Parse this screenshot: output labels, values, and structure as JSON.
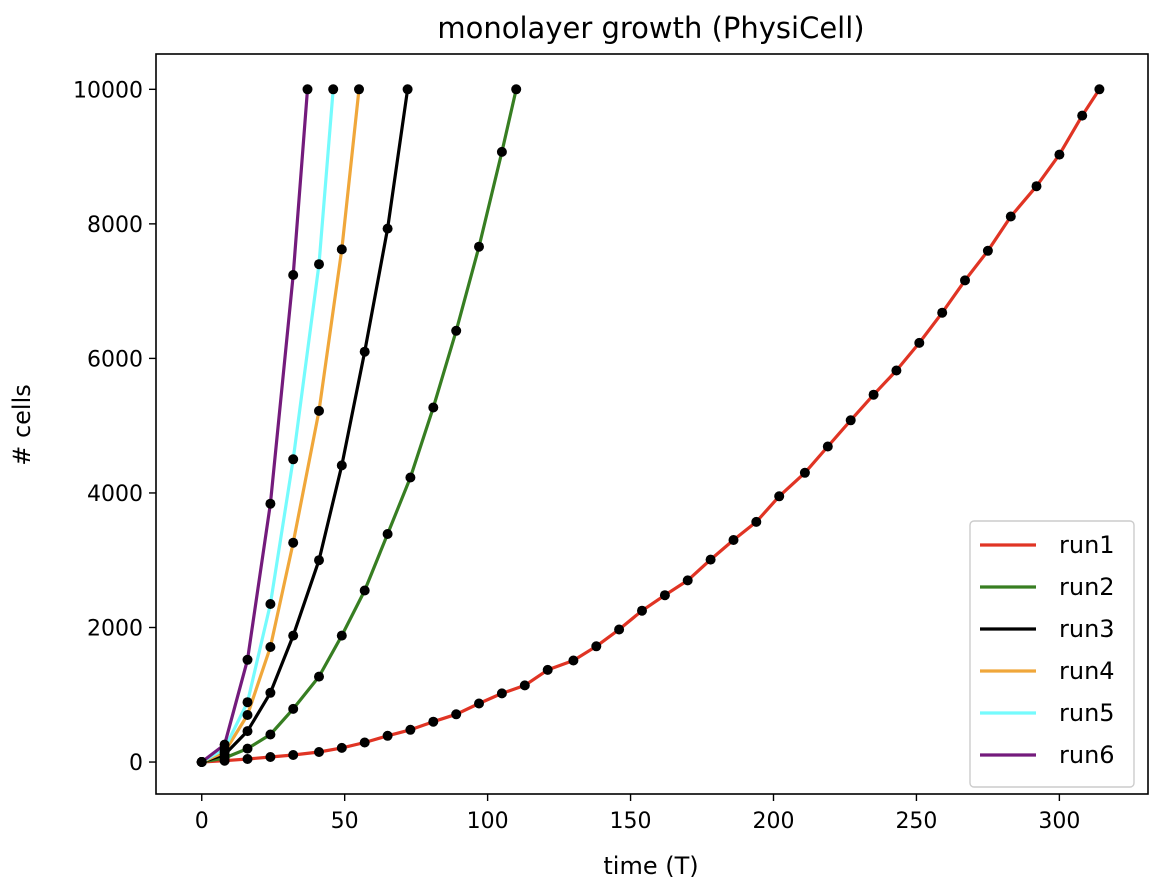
{
  "chart_data": {
    "type": "line",
    "title": "monolayer growth (PhysiCell)",
    "xlabel": "time (T)",
    "ylabel": "# cells",
    "xlim": [
      -16,
      331
    ],
    "ylim": [
      -475,
      10525
    ],
    "xticks": [
      0,
      50,
      100,
      150,
      200,
      250,
      300
    ],
    "yticks": [
      0,
      2000,
      4000,
      6000,
      8000,
      10000
    ],
    "grid": false,
    "legend": "lower-right",
    "marker_color": "#000000",
    "series": [
      {
        "name": "run1",
        "color": "#e03424",
        "x": [
          0,
          8,
          16,
          24,
          32,
          41,
          49,
          57,
          65,
          73,
          81,
          89,
          97,
          105,
          113,
          121,
          130,
          138,
          146,
          154,
          162,
          170,
          178,
          186,
          194,
          202,
          211,
          219,
          227,
          235,
          243,
          251,
          259,
          267,
          275,
          283,
          292,
          300,
          308,
          314
        ],
        "y": [
          0,
          20,
          45,
          75,
          105,
          150,
          210,
          290,
          390,
          480,
          600,
          710,
          870,
          1020,
          1140,
          1370,
          1510,
          1720,
          1970,
          2250,
          2480,
          2700,
          3010,
          3300,
          3570,
          3950,
          4300,
          4690,
          5080,
          5460,
          5820,
          6230,
          6680,
          7160,
          7600,
          8110,
          8560,
          9030,
          9610,
          10000
        ]
      },
      {
        "name": "run2",
        "color": "#377e22",
        "x": [
          0,
          8,
          16,
          24,
          32,
          41,
          49,
          57,
          65,
          73,
          81,
          89,
          97,
          105,
          110
        ],
        "y": [
          0,
          60,
          200,
          410,
          790,
          1270,
          1880,
          2550,
          3390,
          4230,
          5270,
          6410,
          7660,
          9070,
          10000
        ]
      },
      {
        "name": "run3",
        "color": "#000000",
        "x": [
          0,
          8,
          16,
          24,
          32,
          41,
          49,
          57,
          65,
          72
        ],
        "y": [
          0,
          110,
          460,
          1030,
          1880,
          3000,
          4410,
          6100,
          7930,
          10000
        ]
      },
      {
        "name": "run4",
        "color": "#f0a73a",
        "x": [
          0,
          8,
          16,
          24,
          32,
          41,
          49,
          55
        ],
        "y": [
          0,
          150,
          700,
          1710,
          3260,
          5220,
          7620,
          10000
        ]
      },
      {
        "name": "run5",
        "color": "#75fbfd",
        "x": [
          0,
          8,
          16,
          24,
          32,
          41,
          46
        ],
        "y": [
          0,
          200,
          890,
          2350,
          4500,
          7400,
          10000
        ]
      },
      {
        "name": "run6",
        "color": "#741b7c",
        "x": [
          0,
          8,
          16,
          24,
          32,
          37
        ],
        "y": [
          0,
          260,
          1520,
          3840,
          7240,
          10000
        ]
      }
    ]
  }
}
